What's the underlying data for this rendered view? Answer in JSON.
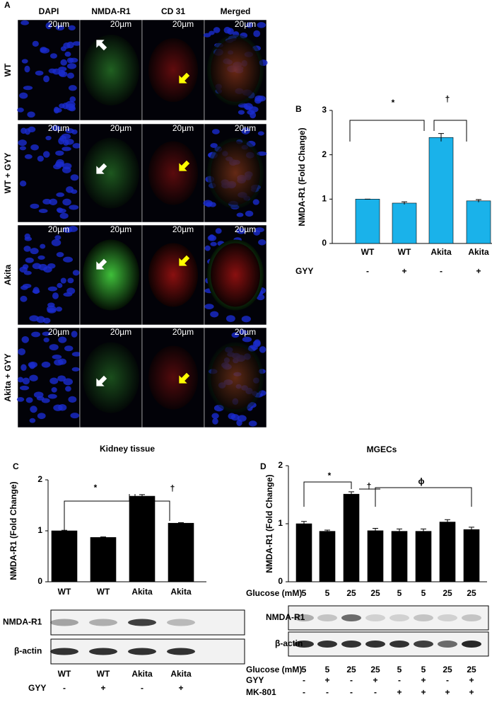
{
  "panel_a": {
    "label": "A",
    "columns": [
      "DAPI",
      "NMDA-R1",
      "CD 31",
      "Merged"
    ],
    "rows": [
      "WT",
      "WT + GYY",
      "Akita",
      "Akita + GYY"
    ],
    "scale_bar": "20µm"
  },
  "chart_data": [
    {
      "type": "bar",
      "panel": "B",
      "y_label": "NMDA-R1 (Fold Change)",
      "categories": [
        "WT",
        "WT",
        "Akita",
        "Akita"
      ],
      "values": [
        1,
        0.91,
        2.39,
        0.96
      ],
      "errors": [
        0,
        0.03,
        0.09,
        0.03
      ],
      "color": "#1ab2ea",
      "ylim": [
        0,
        3
      ],
      "yticks": [
        0,
        1,
        2,
        3
      ],
      "annotations": [
        "*",
        "†"
      ],
      "treatments": [
        {
          "name": "GYY",
          "values": [
            "-",
            "+",
            "-",
            "+"
          ]
        }
      ]
    },
    {
      "type": "bar",
      "panel": "C",
      "title": "Kidney tissue",
      "y_label": "NMDA-R1 (Fold Change)",
      "categories": [
        "WT",
        "WT",
        "Akita",
        "Akita"
      ],
      "values": [
        1,
        0.87,
        1.68,
        1.15
      ],
      "errors": [
        0.01,
        0.01,
        0.03,
        0.01
      ],
      "color": "#000000",
      "ylim": [
        0,
        2
      ],
      "yticks": [
        0,
        1,
        2
      ],
      "annotations": [
        "*",
        "†"
      ]
    },
    {
      "type": "bar",
      "panel": "D",
      "title": "MGECs",
      "x_label": "Glucose (mM)",
      "y_label": "NMDA-R1 (Fold Change)",
      "categories": [
        "5",
        "5",
        "25",
        "25",
        "5",
        "5",
        "25",
        "25"
      ],
      "values": [
        1,
        0.87,
        1.51,
        0.88,
        0.87,
        0.87,
        1.03,
        0.9
      ],
      "errors": [
        0.04,
        0.02,
        0.04,
        0.04,
        0.04,
        0.04,
        0.04,
        0.04
      ],
      "color": "#000000",
      "ylim": [
        0,
        2
      ],
      "yticks": [
        0,
        1,
        2
      ],
      "annotations": [
        "*",
        "†",
        "ϕ"
      ]
    }
  ],
  "blots": [
    {
      "rows": [
        "NMDA-R1",
        "β-actin"
      ],
      "treatments": [
        {
          "name": "",
          "values": [
            "WT",
            "WT",
            "Akita",
            "Akita"
          ]
        },
        {
          "name": "GYY",
          "values": [
            "-",
            "+",
            "-",
            "+"
          ]
        }
      ]
    },
    {
      "rows": [
        "NMDA-R1",
        "β-actin"
      ],
      "treatments": [
        {
          "name": "Glucose (mM)",
          "values": [
            "5",
            "5",
            "25",
            "25",
            "5",
            "5",
            "25",
            "25"
          ]
        },
        {
          "name": "GYY",
          "values": [
            "-",
            "+",
            "-",
            "+",
            "-",
            "+",
            "-",
            "+"
          ]
        },
        {
          "name": "MK-801",
          "values": [
            "-",
            "-",
            "-",
            "-",
            "+",
            "+",
            "+",
            "+"
          ]
        }
      ]
    }
  ]
}
